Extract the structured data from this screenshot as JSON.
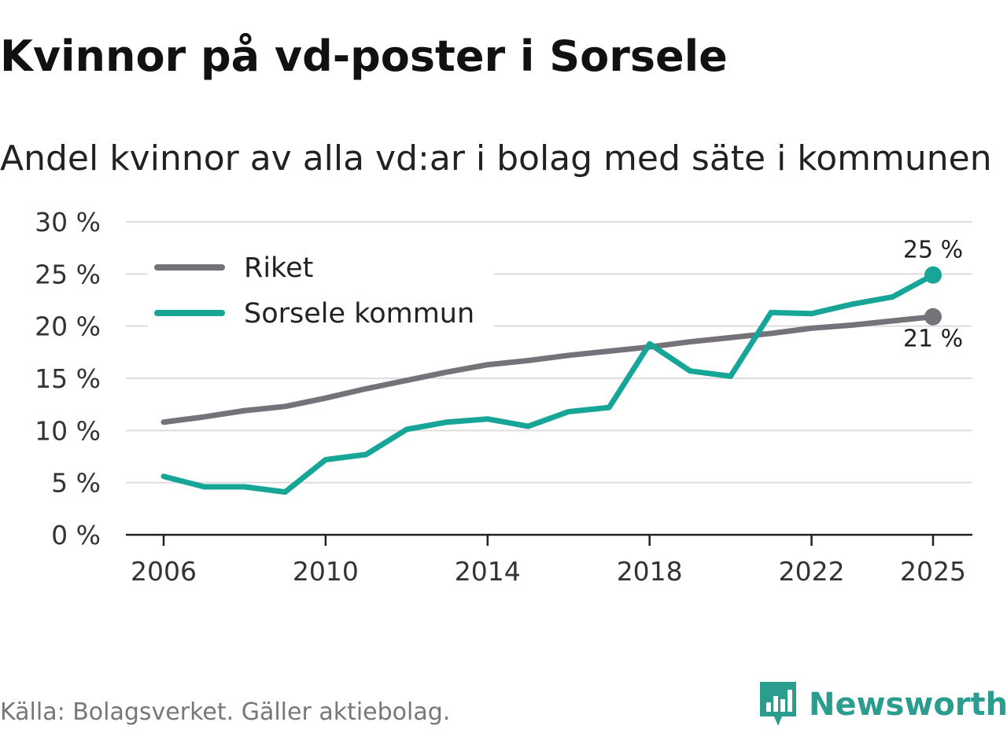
{
  "header": {
    "title": "Kvinnor på vd-poster i Sorsele",
    "subtitle": "Andel kvinnor av alla vd:ar i bolag med säte i kommunen"
  },
  "footer": {
    "source": "Källa: Bolagsverket. Gäller aktiebolag.",
    "brand": "Newsworthy"
  },
  "colors": {
    "riket": "#75727a",
    "sorsele": "#16a596",
    "grid": "#dddddd",
    "axis": "#222222",
    "brand": "#2a9d8f"
  },
  "chart_data": {
    "type": "line",
    "title": "Kvinnor på vd-poster i Sorsele",
    "subtitle": "Andel kvinnor av alla vd:ar i bolag med säte i kommunen",
    "xlabel": "",
    "ylabel": "",
    "x": [
      2006,
      2007,
      2008,
      2009,
      2010,
      2011,
      2012,
      2013,
      2014,
      2015,
      2016,
      2017,
      2018,
      2019,
      2020,
      2021,
      2022,
      2023,
      2024,
      2025
    ],
    "xticks": [
      "2006",
      "2010",
      "2014",
      "2018",
      "2022",
      "2025"
    ],
    "xtick_values": [
      2006,
      2010,
      2014,
      2018,
      2022,
      2025
    ],
    "xlim": [
      2005,
      2025.5
    ],
    "ylim": [
      0,
      30
    ],
    "yticks": [
      "0 %",
      "5 %",
      "10 %",
      "15 %",
      "20 %",
      "25 %",
      "30 %"
    ],
    "ytick_values": [
      0,
      5,
      10,
      15,
      20,
      25,
      30
    ],
    "grid": true,
    "legend_position": "top-left",
    "series": [
      {
        "name": "Riket",
        "key": "riket",
        "values": [
          10.8,
          11.3,
          11.9,
          12.3,
          13.1,
          14.0,
          14.8,
          15.6,
          16.3,
          16.7,
          17.2,
          17.6,
          18.0,
          18.5,
          18.9,
          19.3,
          19.8,
          20.1,
          20.5,
          20.9
        ],
        "end_label": "21 %"
      },
      {
        "name": "Sorsele kommun",
        "key": "sorsele",
        "values": [
          5.6,
          4.6,
          4.6,
          4.1,
          7.2,
          7.7,
          10.1,
          10.8,
          11.1,
          10.4,
          11.8,
          12.2,
          18.3,
          15.7,
          15.2,
          21.3,
          21.2,
          22.1,
          22.8,
          24.9
        ],
        "end_label": "25 %"
      }
    ]
  }
}
